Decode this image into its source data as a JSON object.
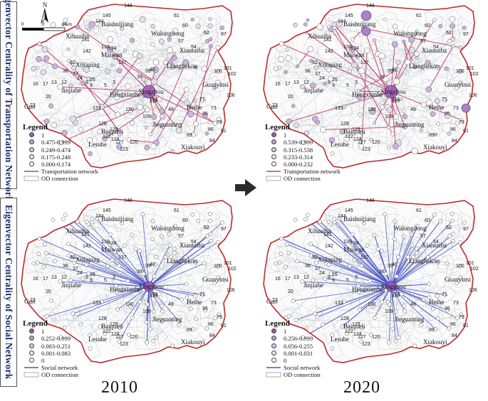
{
  "row_titles": {
    "top": "Eigenvector Centrality of Transportation Network",
    "bottom": "Eigenvector Centrality of Social Network"
  },
  "years": {
    "left": "2010",
    "right": "2020"
  },
  "north_arrow": "N",
  "scale": {
    "ticks": [
      "0",
      "8",
      "16"
    ],
    "unit": "km"
  },
  "places": [
    "Baishuijiang",
    "Wulongdong",
    "Xihuaiba",
    "Maiwan",
    "Xiantaiba",
    "Xijiaping",
    "Lianghekou",
    "Jinjiahe",
    "Hengxianhe",
    "Xingzhou",
    "Guanyinsi",
    "Guo",
    "Heihe",
    "Jieguanting",
    "Baiqueli",
    "Xiakouyi",
    "Lesuhe"
  ],
  "number_labels": [
    "148",
    "145",
    "144",
    "141",
    "142",
    "138",
    "16",
    "17",
    "13",
    "12",
    "20",
    "23",
    "133",
    "134",
    "137",
    "61",
    "60",
    "62",
    "97",
    "57",
    "54",
    "39",
    "38",
    "100",
    "101",
    "102",
    "106",
    "40",
    "48",
    "89",
    "81",
    "84",
    "86",
    "79",
    "71",
    "73",
    "95",
    "110",
    "109",
    "128",
    "122",
    "124",
    "127",
    "123",
    "120",
    "129",
    "130",
    "151",
    "32",
    "36",
    "37",
    "24",
    "25",
    "8",
    "9",
    "5",
    "3"
  ],
  "legends": {
    "transport_2010": {
      "title": "Legend",
      "classes": [
        "1",
        "0.475-0.999",
        "0.249-0.474",
        "0.175-0.248",
        "0.000-0.174"
      ],
      "lines": [
        "Transportation network",
        "OD connection"
      ]
    },
    "transport_2020": {
      "title": "Legend",
      "classes": [
        "1",
        "0.539-0.999",
        "0.315-0.538",
        "0.233-0.314",
        "0.000-0.232"
      ],
      "lines": [
        "Transportation network",
        "OD connection"
      ]
    },
    "social_2010": {
      "title": "Legend",
      "classes": [
        "1",
        "0.252-0.999",
        "0.083-0.251",
        "0.001-0.083",
        "0"
      ],
      "lines": [
        "Social network",
        "OD connection"
      ]
    },
    "social_2020": {
      "title": "Legend",
      "classes": [
        "1",
        "0.256-0.999",
        "0.056-0.255",
        "0.001-0.031",
        "0"
      ],
      "lines": [
        "Social network",
        "OD connection"
      ]
    }
  },
  "colors": {
    "boundary": "#c0282e",
    "transport_line": "#c2406a",
    "social_line": "#4a55c9",
    "od_line": "#b8c8d0",
    "node_top": "#9b59b6",
    "title_text": "#1a2a6c"
  }
}
